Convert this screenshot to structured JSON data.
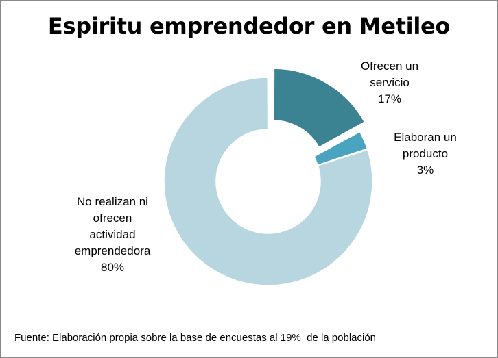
{
  "chart_data": {
    "type": "pie",
    "variant": "donut",
    "title": "Espiritu emprendedor en Metileo",
    "slices": [
      {
        "label_lines": [
          "Ofrecen un",
          "servicio"
        ],
        "label": "Ofrecen un servicio",
        "value": 17,
        "value_label": "17%",
        "color": "#3b8293",
        "exploded": true
      },
      {
        "label_lines": [
          "Elaboran un",
          "producto"
        ],
        "label": "Elaboran un producto",
        "value": 3,
        "value_label": "3%",
        "color": "#4aa3bf",
        "exploded": false
      },
      {
        "label_lines": [
          "No realizan ni",
          "ofrecen",
          "actividad",
          "emprendedora"
        ],
        "label": "No realizan ni ofrecen actividad emprendedora",
        "value": 80,
        "value_label": "80%",
        "color": "#b8d6e0",
        "exploded": false
      }
    ],
    "source": "Fuente: Elaboración propia sobre la base de encuestas al 19%  de la población"
  }
}
